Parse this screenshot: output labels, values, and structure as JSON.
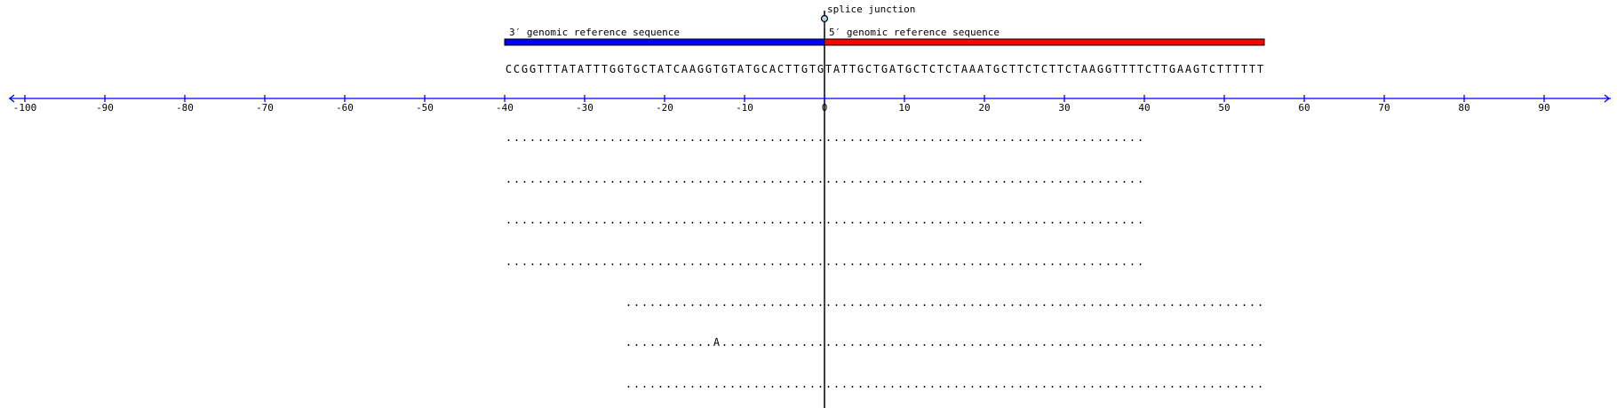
{
  "junction": {
    "label": "splice junction",
    "position": 0
  },
  "reference": {
    "left": {
      "label": "3′ genomic reference sequence",
      "start": -40,
      "end": 0,
      "color": "#0000ff",
      "sequence": "CCGGTTTATATTTGGTGCTATCAAGGTGTATGCACTTGTG"
    },
    "right": {
      "label": "5′ genomic reference sequence",
      "start": 0,
      "end": 55,
      "color": "#ff0000",
      "sequence": "TATTGCTGATGCTCTCTAAATGCTTCTCTTCTAAGGTTTTCTTGAAGTCTTTTTT"
    }
  },
  "axis": {
    "min": -100,
    "max": 90,
    "step": 10,
    "color": "#0000ff",
    "ticks": [
      "-100",
      "-90",
      "-80",
      "-70",
      "-60",
      "-50",
      "-40",
      "-30",
      "-20",
      "-10",
      "0",
      "10",
      "20",
      "30",
      "40",
      "50",
      "60",
      "70",
      "80",
      "90"
    ]
  },
  "reads": [
    {
      "start": -40,
      "text": "................................................................................"
    },
    {
      "start": -40,
      "text": "................................................................................"
    },
    {
      "start": -40,
      "text": "................................................................................"
    },
    {
      "start": -40,
      "text": "................................................................................"
    },
    {
      "start": -25,
      "text": "................................................................................"
    },
    {
      "start": -25,
      "text": "...........A...................................................................."
    },
    {
      "start": -25,
      "text": "................................................................................"
    }
  ]
}
